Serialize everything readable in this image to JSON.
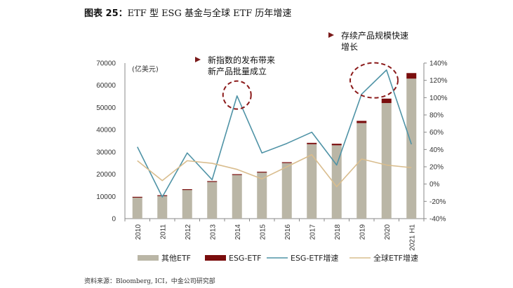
{
  "figure": {
    "title_prefix": "图表 25：",
    "title_text": "ETF 型 ESG 基金与全球 ETF 历年增速",
    "source": "资料来源：Bloomberg, ICI，中金公司研究部"
  },
  "colors": {
    "other_etf": "#bab6a6",
    "esg_etf": "#7a0d0d",
    "esg_growth": "#4f93a6",
    "global_growth": "#d9bd8e",
    "annotation_marker": "#7a1a1a",
    "annotation_circle": "#8b1a1a"
  },
  "annotations": [
    {
      "lines": [
        "新指数的发布带来",
        "新产品批量成立"
      ]
    },
    {
      "lines": [
        "存续产品规模快速",
        "增长"
      ]
    }
  ],
  "chart_data": {
    "type": "bar+line",
    "unit_label": "(亿美元)",
    "categories": [
      "2010",
      "2011",
      "2012",
      "2013",
      "2014",
      "2015",
      "2016",
      "2017",
      "2018",
      "2019",
      "2020",
      "2021 H1"
    ],
    "left_axis": {
      "ylim": [
        0,
        70000
      ],
      "ticks": [
        0,
        10000,
        20000,
        30000,
        40000,
        50000,
        60000,
        70000
      ]
    },
    "right_axis": {
      "ylim": [
        -40,
        140
      ],
      "ticks": [
        "-40%",
        "-20%",
        "0%",
        "20%",
        "40%",
        "60%",
        "80%",
        "100%",
        "120%",
        "140%"
      ]
    },
    "bars": [
      {
        "name": "其他ETF",
        "stack": "etf",
        "values": [
          9700,
          10400,
          13100,
          16700,
          19700,
          20800,
          25000,
          33500,
          33000,
          43000,
          52000,
          63000
        ]
      },
      {
        "name": "ESG-ETF",
        "stack": "etf",
        "values": [
          120,
          130,
          150,
          180,
          300,
          300,
          400,
          600,
          700,
          1000,
          2000,
          2500
        ]
      }
    ],
    "lines": [
      {
        "name": "ESG-ETF增速",
        "axis": "right",
        "values": [
          43,
          -15,
          36,
          5,
          102,
          36,
          47,
          60,
          22,
          104,
          132,
          46
        ]
      },
      {
        "name": "全球ETF增速",
        "axis": "right",
        "values": [
          27,
          4,
          27,
          24,
          17,
          6,
          20,
          34,
          -3,
          29,
          22,
          19
        ]
      }
    ],
    "legend": {
      "position": "bottom",
      "items": [
        {
          "label": "其他ETF",
          "kind": "bar"
        },
        {
          "label": "ESG-ETF",
          "kind": "bar"
        },
        {
          "label": "ESG-ETF增速",
          "kind": "line"
        },
        {
          "label": "全球ETF增速",
          "kind": "line"
        }
      ]
    }
  }
}
